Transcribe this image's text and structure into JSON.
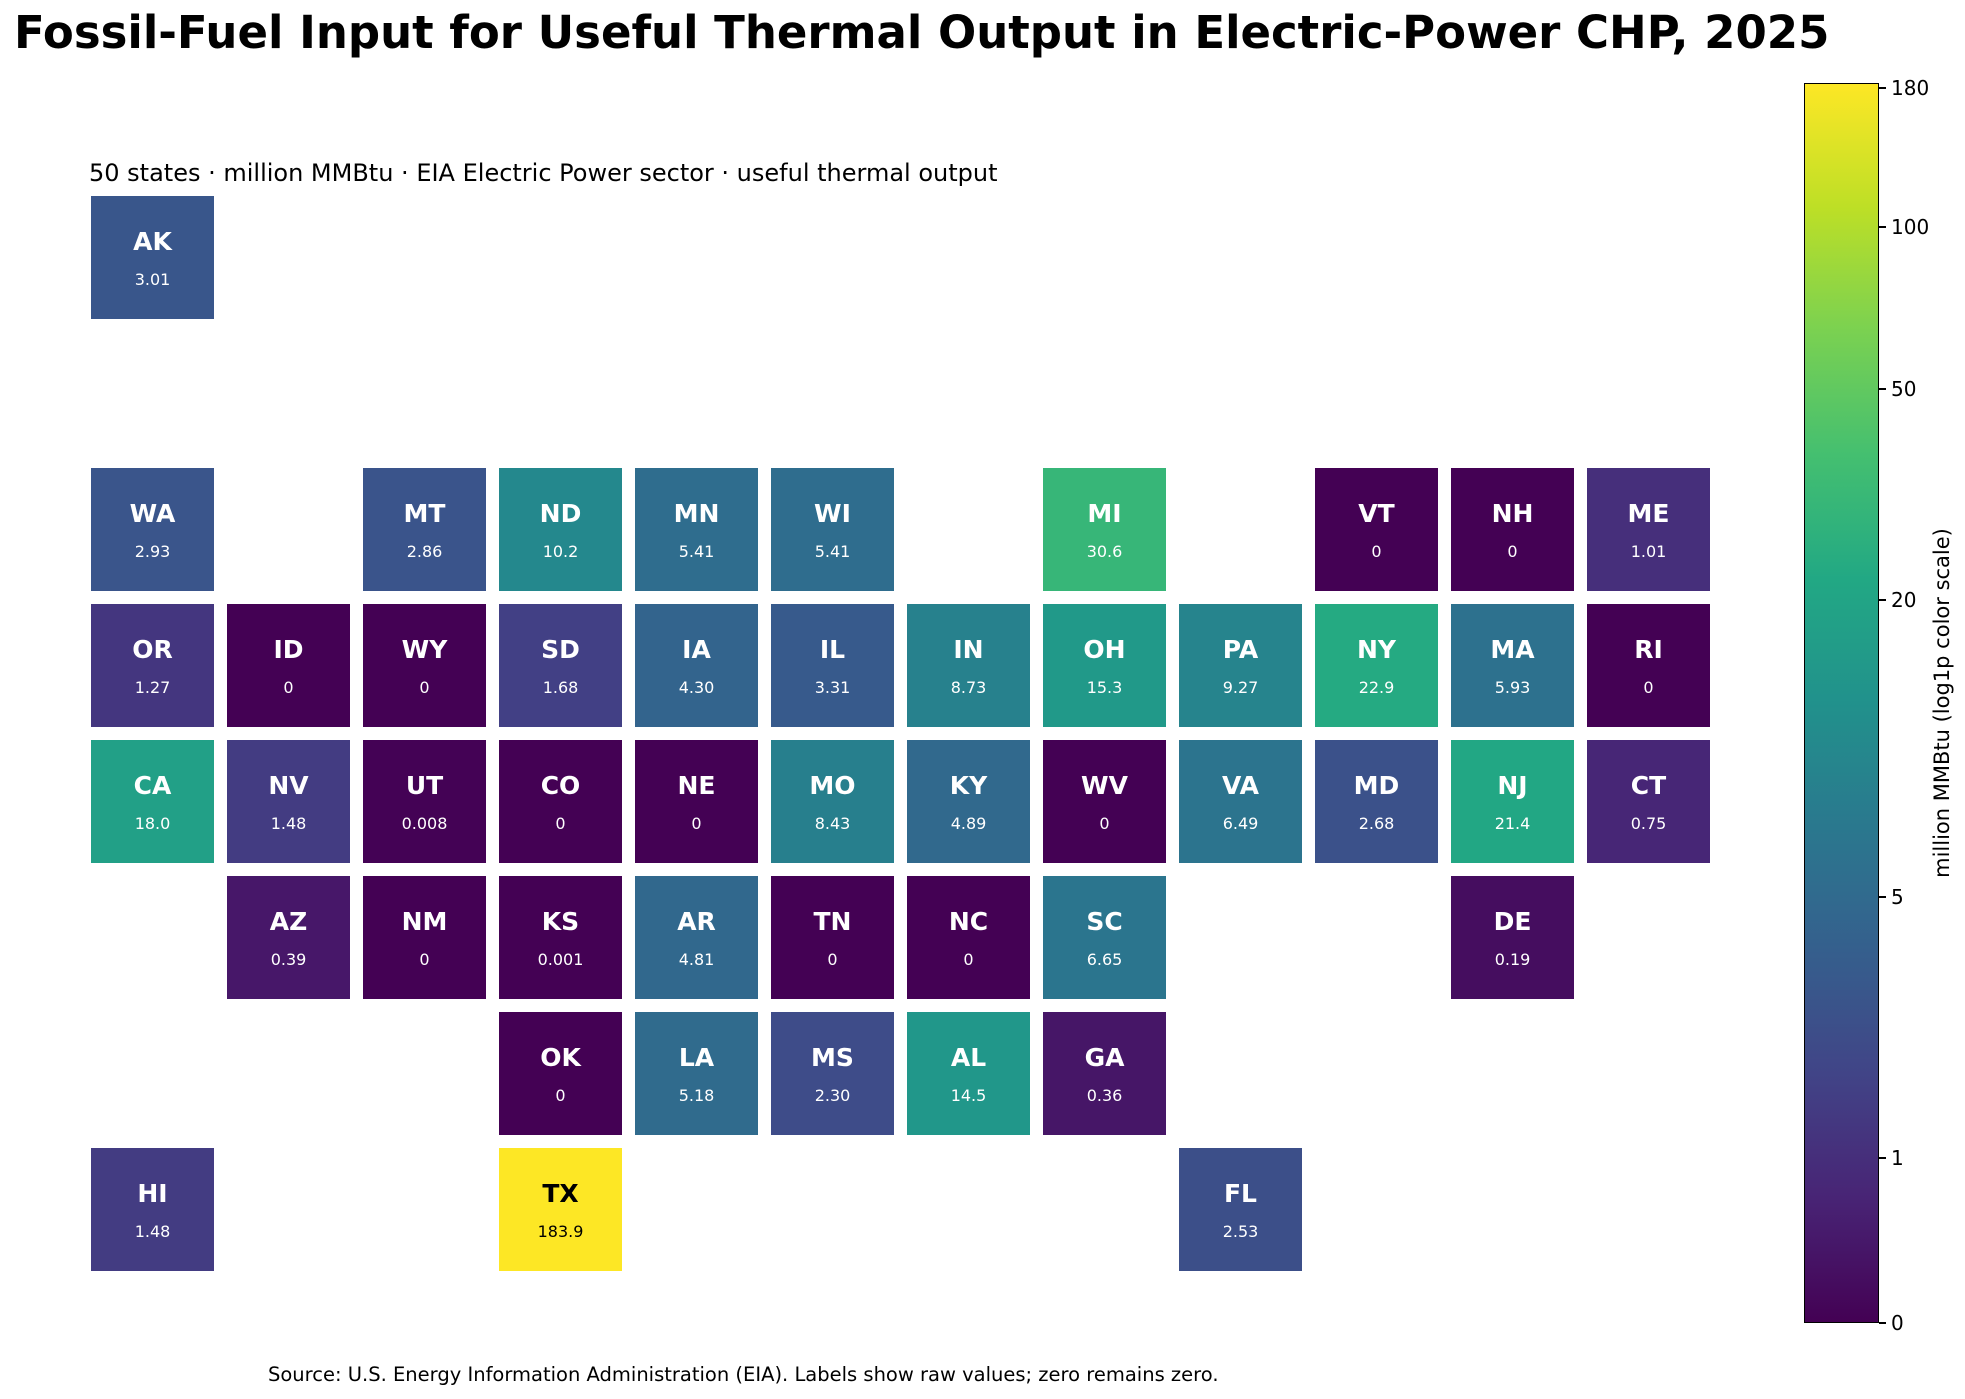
{
  "title": "Fossil-Fuel Input for Useful Thermal Output in Electric-Power CHP, 2025",
  "subtitle": "50 states · million MMBtu · EIA Electric Power sector · useful thermal output",
  "source": "Source: U.S. Energy Information Administration (EIA). Labels show raw values; zero remains zero.",
  "chart_data": {
    "type": "heatmap",
    "layout": "tile grid map of U.S. states",
    "unit": "million MMBtu",
    "colormap": "viridis",
    "color_scale": "log1p",
    "colorbar": {
      "label": "million MMBtu (log1p color scale)",
      "range": [
        0,
        183.9
      ],
      "ticks": [
        0,
        1,
        5,
        20,
        50,
        100,
        180
      ],
      "tick_labels": [
        "0",
        "1",
        "5",
        "20",
        "50",
        "100",
        "180"
      ]
    },
    "states": [
      {
        "abbr": "AK",
        "label": "3.01",
        "value": 3.01,
        "row": 0,
        "col": 0
      },
      {
        "abbr": "WA",
        "label": "2.93",
        "value": 2.93,
        "row": 2,
        "col": 0
      },
      {
        "abbr": "MT",
        "label": "2.86",
        "value": 2.86,
        "row": 2,
        "col": 2
      },
      {
        "abbr": "ND",
        "label": "10.2",
        "value": 10.2,
        "row": 2,
        "col": 3
      },
      {
        "abbr": "MN",
        "label": "5.41",
        "value": 5.41,
        "row": 2,
        "col": 4
      },
      {
        "abbr": "WI",
        "label": "5.41",
        "value": 5.41,
        "row": 2,
        "col": 5
      },
      {
        "abbr": "MI",
        "label": "30.6",
        "value": 30.6,
        "row": 2,
        "col": 7
      },
      {
        "abbr": "VT",
        "label": "0",
        "value": 0,
        "row": 2,
        "col": 9
      },
      {
        "abbr": "NH",
        "label": "0",
        "value": 0,
        "row": 2,
        "col": 10
      },
      {
        "abbr": "ME",
        "label": "1.01",
        "value": 1.01,
        "row": 2,
        "col": 11
      },
      {
        "abbr": "OR",
        "label": "1.27",
        "value": 1.27,
        "row": 3,
        "col": 0
      },
      {
        "abbr": "ID",
        "label": "0",
        "value": 0,
        "row": 3,
        "col": 1
      },
      {
        "abbr": "WY",
        "label": "0",
        "value": 0,
        "row": 3,
        "col": 2
      },
      {
        "abbr": "SD",
        "label": "1.68",
        "value": 1.68,
        "row": 3,
        "col": 3
      },
      {
        "abbr": "IA",
        "label": "4.30",
        "value": 4.3,
        "row": 3,
        "col": 4
      },
      {
        "abbr": "IL",
        "label": "3.31",
        "value": 3.31,
        "row": 3,
        "col": 5
      },
      {
        "abbr": "IN",
        "label": "8.73",
        "value": 8.73,
        "row": 3,
        "col": 6
      },
      {
        "abbr": "OH",
        "label": "15.3",
        "value": 15.3,
        "row": 3,
        "col": 7
      },
      {
        "abbr": "PA",
        "label": "9.27",
        "value": 9.27,
        "row": 3,
        "col": 8
      },
      {
        "abbr": "NY",
        "label": "22.9",
        "value": 22.9,
        "row": 3,
        "col": 9
      },
      {
        "abbr": "MA",
        "label": "5.93",
        "value": 5.93,
        "row": 3,
        "col": 10
      },
      {
        "abbr": "RI",
        "label": "0",
        "value": 0,
        "row": 3,
        "col": 11
      },
      {
        "abbr": "CA",
        "label": "18.0",
        "value": 18.0,
        "row": 4,
        "col": 0
      },
      {
        "abbr": "NV",
        "label": "1.48",
        "value": 1.48,
        "row": 4,
        "col": 1
      },
      {
        "abbr": "UT",
        "label": "0.008",
        "value": 0.008,
        "row": 4,
        "col": 2
      },
      {
        "abbr": "CO",
        "label": "0",
        "value": 0,
        "row": 4,
        "col": 3
      },
      {
        "abbr": "NE",
        "label": "0",
        "value": 0,
        "row": 4,
        "col": 4
      },
      {
        "abbr": "MO",
        "label": "8.43",
        "value": 8.43,
        "row": 4,
        "col": 5
      },
      {
        "abbr": "KY",
        "label": "4.89",
        "value": 4.89,
        "row": 4,
        "col": 6
      },
      {
        "abbr": "WV",
        "label": "0",
        "value": 0,
        "row": 4,
        "col": 7
      },
      {
        "abbr": "VA",
        "label": "6.49",
        "value": 6.49,
        "row": 4,
        "col": 8
      },
      {
        "abbr": "MD",
        "label": "2.68",
        "value": 2.68,
        "row": 4,
        "col": 9
      },
      {
        "abbr": "NJ",
        "label": "21.4",
        "value": 21.4,
        "row": 4,
        "col": 10
      },
      {
        "abbr": "CT",
        "label": "0.75",
        "value": 0.75,
        "row": 4,
        "col": 11
      },
      {
        "abbr": "AZ",
        "label": "0.39",
        "value": 0.39,
        "row": 5,
        "col": 1
      },
      {
        "abbr": "NM",
        "label": "0",
        "value": 0,
        "row": 5,
        "col": 2
      },
      {
        "abbr": "KS",
        "label": "0.001",
        "value": 0.001,
        "row": 5,
        "col": 3
      },
      {
        "abbr": "AR",
        "label": "4.81",
        "value": 4.81,
        "row": 5,
        "col": 4
      },
      {
        "abbr": "TN",
        "label": "0",
        "value": 0,
        "row": 5,
        "col": 5
      },
      {
        "abbr": "NC",
        "label": "0",
        "value": 0,
        "row": 5,
        "col": 6
      },
      {
        "abbr": "SC",
        "label": "6.65",
        "value": 6.65,
        "row": 5,
        "col": 7
      },
      {
        "abbr": "DE",
        "label": "0.19",
        "value": 0.19,
        "row": 5,
        "col": 10
      },
      {
        "abbr": "OK",
        "label": "0",
        "value": 0,
        "row": 6,
        "col": 3
      },
      {
        "abbr": "LA",
        "label": "5.18",
        "value": 5.18,
        "row": 6,
        "col": 4
      },
      {
        "abbr": "MS",
        "label": "2.30",
        "value": 2.3,
        "row": 6,
        "col": 5
      },
      {
        "abbr": "AL",
        "label": "14.5",
        "value": 14.5,
        "row": 6,
        "col": 6
      },
      {
        "abbr": "GA",
        "label": "0.36",
        "value": 0.36,
        "row": 6,
        "col": 7
      },
      {
        "abbr": "HI",
        "label": "1.48",
        "value": 1.48,
        "row": 7,
        "col": 0
      },
      {
        "abbr": "TX",
        "label": "183.9",
        "value": 183.9,
        "row": 7,
        "col": 3
      },
      {
        "abbr": "FL",
        "label": "2.53",
        "value": 2.53,
        "row": 7,
        "col": 8
      }
    ]
  }
}
